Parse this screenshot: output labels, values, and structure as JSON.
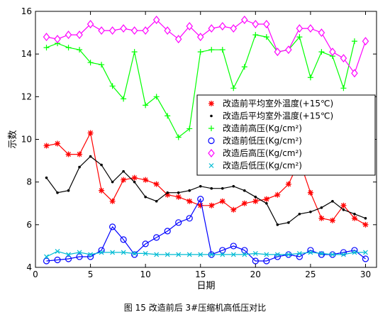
{
  "caption": "图 15  改造前后 3#压缩机高低压对比",
  "chart_data": {
    "type": "line",
    "xlabel": "日期",
    "ylabel": "示数",
    "xlim": [
      0,
      31
    ],
    "ylim": [
      4,
      16
    ],
    "xticks": [
      0,
      5,
      10,
      15,
      20,
      25,
      30
    ],
    "yticks": [
      4,
      6,
      8,
      10,
      12,
      14,
      16
    ],
    "grid": false,
    "legend_position": "upper-right",
    "x": [
      1,
      2,
      3,
      4,
      5,
      6,
      7,
      8,
      9,
      10,
      11,
      12,
      13,
      14,
      15,
      16,
      17,
      18,
      19,
      20,
      21,
      22,
      23,
      24,
      25,
      26,
      27,
      28,
      29,
      30
    ],
    "series": [
      {
        "name": "改造前平均室外温度(+15℃)",
        "color": "#ff0000",
        "marker": "asterisk",
        "values": [
          9.7,
          9.8,
          9.3,
          9.3,
          10.3,
          7.6,
          7.1,
          8.1,
          8.2,
          8.1,
          7.9,
          7.4,
          7.3,
          7.1,
          6.9,
          6.9,
          7.1,
          6.7,
          7.0,
          7.1,
          7.2,
          7.4,
          7.9,
          9.0,
          7.5,
          6.3,
          6.2,
          6.9,
          6.3,
          6.0
        ]
      },
      {
        "name": "改造后平均室外温度(+15℃)",
        "color": "#000000",
        "marker": "dot",
        "values": [
          8.2,
          7.5,
          7.6,
          8.7,
          9.2,
          8.8,
          8.0,
          8.5,
          8.0,
          7.3,
          7.1,
          7.5,
          7.5,
          7.6,
          7.8,
          7.7,
          7.7,
          7.8,
          7.6,
          7.3,
          7.0,
          6.0,
          6.1,
          6.5,
          6.6,
          6.8,
          7.1,
          6.7,
          6.5,
          6.3
        ]
      },
      {
        "name": "改造前高压(Kg/cm²)",
        "color": "#00ff00",
        "marker": "plus",
        "values": [
          14.3,
          14.5,
          14.3,
          14.2,
          13.6,
          13.5,
          12.5,
          11.9,
          14.1,
          11.6,
          12.0,
          11.1,
          10.1,
          10.5,
          14.1,
          14.2,
          14.2,
          12.4,
          13.4,
          14.9,
          14.8,
          14.1,
          14.2,
          14.8,
          12.9,
          14.1,
          13.9,
          12.4,
          14.6,
          null
        ]
      },
      {
        "name": "改造前低压(Kg/cm²)",
        "color": "#0000ff",
        "marker": "circle",
        "values": [
          4.3,
          4.35,
          4.4,
          4.5,
          4.5,
          4.8,
          5.9,
          5.3,
          4.6,
          5.1,
          5.4,
          5.7,
          6.1,
          6.3,
          7.2,
          4.6,
          4.8,
          5.0,
          4.8,
          4.3,
          4.3,
          4.5,
          4.6,
          4.5,
          4.8,
          4.6,
          4.6,
          4.7,
          4.8,
          4.4
        ]
      },
      {
        "name": "改造后高压(Kg/cm²)",
        "color": "#ff00ff",
        "marker": "diamond",
        "values": [
          14.8,
          14.7,
          14.9,
          14.9,
          15.4,
          15.1,
          15.1,
          15.2,
          15.1,
          15.1,
          15.6,
          15.1,
          14.7,
          15.3,
          14.8,
          15.2,
          15.3,
          15.2,
          15.6,
          15.4,
          15.4,
          14.1,
          14.2,
          15.2,
          15.2,
          15.0,
          14.1,
          13.8,
          13.1,
          14.6
        ]
      },
      {
        "name": "改造后低压(Kg/cm²)",
        "color": "#00bcd4",
        "marker": "x",
        "values": [
          4.5,
          4.75,
          4.6,
          4.7,
          4.6,
          4.7,
          4.7,
          4.7,
          4.65,
          4.65,
          4.6,
          4.6,
          4.6,
          4.6,
          4.6,
          4.6,
          4.6,
          4.6,
          4.6,
          4.65,
          4.6,
          4.6,
          4.6,
          4.65,
          4.7,
          4.65,
          4.6,
          4.6,
          4.7,
          4.7
        ]
      }
    ]
  }
}
